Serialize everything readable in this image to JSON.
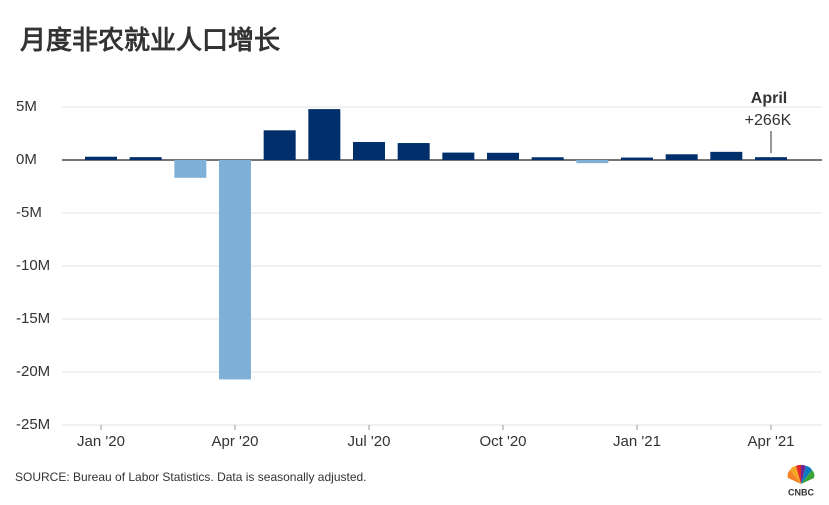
{
  "chart_data": {
    "type": "bar",
    "title": "月度非农就业人口增长",
    "categories": [
      "Jan '20",
      null,
      null,
      "Apr '20",
      null,
      null,
      "Jul '20",
      null,
      null,
      "Oct '20",
      null,
      null,
      "Jan '21",
      null,
      null,
      "Apr '21"
    ],
    "values": [
      0.31,
      0.27,
      -1.68,
      -20.7,
      2.8,
      4.8,
      1.7,
      1.6,
      0.7,
      0.68,
      0.26,
      -0.3,
      0.23,
      0.54,
      0.77,
      0.266
    ],
    "positive_color": "#002f6c",
    "negative_color": "#7fb0d8",
    "ylim": [
      -25,
      5
    ],
    "yticks": [
      {
        "value": -25,
        "label": "-25M"
      },
      {
        "value": -20,
        "label": "-20M"
      },
      {
        "value": -15,
        "label": "-15M"
      },
      {
        "value": -10,
        "label": "-10M"
      },
      {
        "value": -5,
        "label": "-5M"
      },
      {
        "value": 0,
        "label": "0M"
      },
      {
        "value": 5,
        "label": "5M"
      }
    ],
    "grid": true,
    "annotation": {
      "title": "April",
      "text": "+266K"
    },
    "source": "SOURCE: Bureau of Labor Statistics. Data is seasonally adjusted.",
    "logo": "CNBC"
  }
}
